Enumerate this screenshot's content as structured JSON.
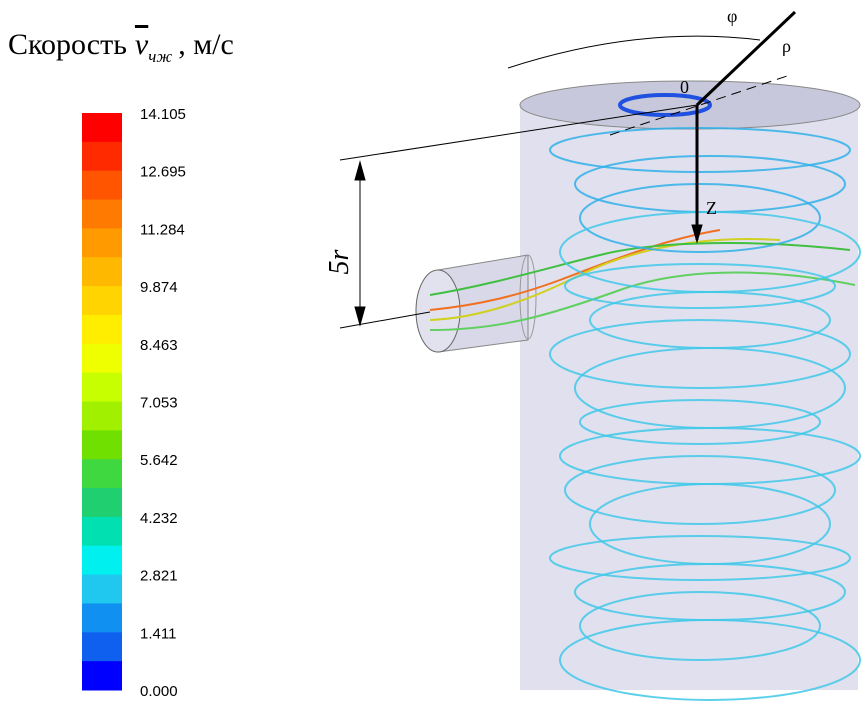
{
  "title": {
    "prefix": "Скорость",
    "symbol": "v",
    "subscript": "чж",
    "suffix": ", м/с"
  },
  "colorbar": {
    "labels": [
      "14.105",
      "12.695",
      "11.284",
      "9.874",
      "8.463",
      "7.053",
      "5.642",
      "4.232",
      "2.821",
      "1.411",
      "0.000"
    ]
  },
  "diagram": {
    "phi": "φ",
    "rho": "ρ",
    "origin": "0",
    "z": "Z",
    "dimension": "5r"
  }
}
